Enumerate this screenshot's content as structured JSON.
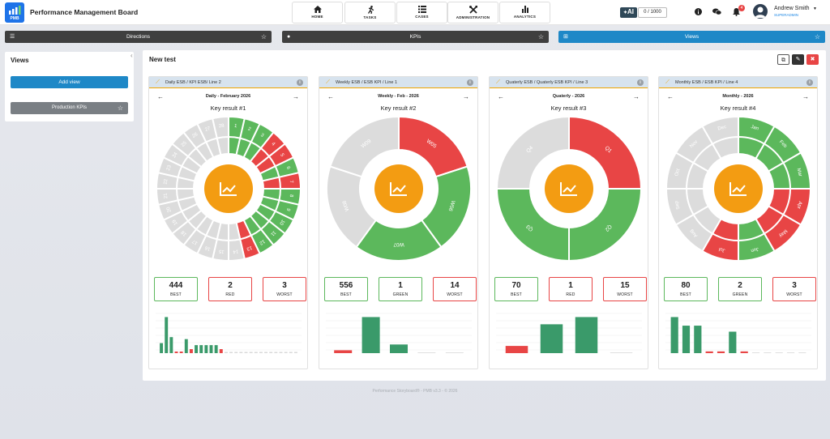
{
  "app": {
    "title": "Performance Management Board",
    "logo_text": "PMB"
  },
  "nav": [
    {
      "label": "HOME",
      "icon": "home-icon"
    },
    {
      "label": "TASKS",
      "icon": "running-icon"
    },
    {
      "label": "CASES",
      "icon": "list-icon"
    },
    {
      "label": "ADMINISTRATION",
      "icon": "tools-icon"
    },
    {
      "label": "ANALYTICS",
      "icon": "bar-chart-icon"
    }
  ],
  "ai": {
    "label": "AI",
    "usage": "0 / 1000"
  },
  "notifications": {
    "count": "4"
  },
  "user": {
    "name": "Andrew Smith",
    "role": "SUPERADMIN"
  },
  "panels": {
    "directions": "Directions",
    "kpis": "KPIs",
    "views": "Views"
  },
  "sidebar": {
    "title": "Views",
    "add_view": "Add view",
    "items": [
      "Production KPIs"
    ]
  },
  "main": {
    "title": "New test"
  },
  "colors": {
    "green": "#5cb85c",
    "red": "#e84545",
    "grey": "#dcdcdc",
    "orange": "#f39c12",
    "blue": "#1e88c7",
    "dark": "#3a3a3a"
  },
  "cards": [
    {
      "header": "Daily ESB / KPI ESB/ Line 2",
      "period": "Daily - February 2026",
      "key_result": "Key result #1",
      "segments": [
        [
          "1",
          "g"
        ],
        [
          "2",
          "g"
        ],
        [
          "3",
          "g"
        ],
        [
          "4",
          "r"
        ],
        [
          "5",
          "r"
        ],
        [
          "6",
          "g"
        ],
        [
          "7",
          "r"
        ],
        [
          "8",
          "g"
        ],
        [
          "9",
          "g"
        ],
        [
          "10",
          "g"
        ],
        [
          "11",
          "g"
        ],
        [
          "12",
          "g"
        ],
        [
          "13",
          "r"
        ],
        [
          "14",
          "e"
        ],
        [
          "15",
          "e"
        ],
        [
          "16",
          "e"
        ],
        [
          "17",
          "e"
        ],
        [
          "18",
          "e"
        ],
        [
          "19",
          "e"
        ],
        [
          "20",
          "e"
        ],
        [
          "21",
          "e"
        ],
        [
          "22",
          "e"
        ],
        [
          "23",
          "e"
        ],
        [
          "24",
          "e"
        ],
        [
          "25",
          "e"
        ],
        [
          "26",
          "e"
        ],
        [
          "27",
          "e"
        ],
        [
          "28",
          "e"
        ]
      ],
      "stats": [
        {
          "value": "444",
          "label": "BEST",
          "color": "g"
        },
        {
          "value": "2",
          "label": "RED",
          "color": "r"
        },
        {
          "value": "3",
          "label": "WORST",
          "color": "r"
        }
      ],
      "bars": [
        [
          2.5,
          "g"
        ],
        [
          9,
          "g"
        ],
        [
          4,
          "g"
        ],
        [
          0.4,
          "r"
        ],
        [
          0.4,
          "r"
        ],
        [
          3.5,
          "g"
        ],
        [
          1,
          "r"
        ],
        [
          2,
          "g"
        ],
        [
          2,
          "g"
        ],
        [
          2,
          "g"
        ],
        [
          2,
          "g"
        ],
        [
          2,
          "g"
        ],
        [
          1,
          "r"
        ],
        [
          0.1,
          "e"
        ],
        [
          0.1,
          "e"
        ],
        [
          0.1,
          "e"
        ],
        [
          0.1,
          "e"
        ],
        [
          0.1,
          "e"
        ],
        [
          0.1,
          "e"
        ],
        [
          0.1,
          "e"
        ],
        [
          0.1,
          "e"
        ],
        [
          0.1,
          "e"
        ],
        [
          0.1,
          "e"
        ],
        [
          0.1,
          "e"
        ],
        [
          0.1,
          "e"
        ],
        [
          0.1,
          "e"
        ],
        [
          0.1,
          "e"
        ],
        [
          0.1,
          "e"
        ]
      ]
    },
    {
      "header": "Weekly ESB / ESB KPI / Line 1",
      "period": "Weekly - Feb - 2026",
      "key_result": "Key result #2",
      "segments": [
        [
          "W05",
          "r"
        ],
        [
          "W06",
          "g"
        ],
        [
          "W07",
          "g"
        ],
        [
          "W08",
          "e"
        ],
        [
          "W09",
          "e"
        ]
      ],
      "stats": [
        {
          "value": "556",
          "label": "BEST",
          "color": "g"
        },
        {
          "value": "1",
          "label": "GREEN",
          "color": "g"
        },
        {
          "value": "14",
          "label": "WORST",
          "color": "r"
        }
      ],
      "bars": [
        [
          0.4,
          "r"
        ],
        [
          5,
          "g"
        ],
        [
          1.2,
          "g"
        ],
        [
          0,
          "e"
        ],
        [
          0,
          "e"
        ]
      ]
    },
    {
      "header": "Quaterly ESB / Quaterly ESB KPI / Line 3",
      "period": "Quaterly - 2026",
      "key_result": "Key result #3",
      "segments": [
        [
          "Q1",
          "r"
        ],
        [
          "Q2",
          "g"
        ],
        [
          "Q3",
          "g"
        ],
        [
          "Q4",
          "e"
        ]
      ],
      "stats": [
        {
          "value": "70",
          "label": "BEST",
          "color": "g"
        },
        {
          "value": "1",
          "label": "RED",
          "color": "r"
        },
        {
          "value": "15",
          "label": "WORST",
          "color": "r"
        }
      ],
      "bars": [
        [
          1,
          "r"
        ],
        [
          4,
          "g"
        ],
        [
          5,
          "g"
        ],
        [
          0,
          "e"
        ]
      ]
    },
    {
      "header": "Monthly ESB / ESB KPI / Line 4",
      "period": "Monthly - 2026",
      "key_result": "Key result #4",
      "segments": [
        [
          "Jan",
          "g"
        ],
        [
          "Feb",
          "g"
        ],
        [
          "Mar",
          "g"
        ],
        [
          "Apr",
          "r"
        ],
        [
          "May",
          "r"
        ],
        [
          "Jun",
          "g"
        ],
        [
          "Jul",
          "r"
        ],
        [
          "Aug",
          "e"
        ],
        [
          "Sep",
          "e"
        ],
        [
          "Oct",
          "e"
        ],
        [
          "Nov",
          "e"
        ],
        [
          "Dec",
          "e"
        ]
      ],
      "stats": [
        {
          "value": "80",
          "label": "BEST",
          "color": "g"
        },
        {
          "value": "2",
          "label": "GREEN",
          "color": "g"
        },
        {
          "value": "3",
          "label": "WORST",
          "color": "r"
        }
      ],
      "bars": [
        [
          4.2,
          "g"
        ],
        [
          3.2,
          "g"
        ],
        [
          3.2,
          "g"
        ],
        [
          0.2,
          "r"
        ],
        [
          0.2,
          "r"
        ],
        [
          2.5,
          "g"
        ],
        [
          0.2,
          "r"
        ],
        [
          0,
          "e"
        ],
        [
          0,
          "e"
        ],
        [
          0,
          "e"
        ],
        [
          0,
          "e"
        ],
        [
          0,
          "e"
        ]
      ]
    }
  ],
  "footer": "Performance Storyboard® - PMB v3.3 - © 2026"
}
